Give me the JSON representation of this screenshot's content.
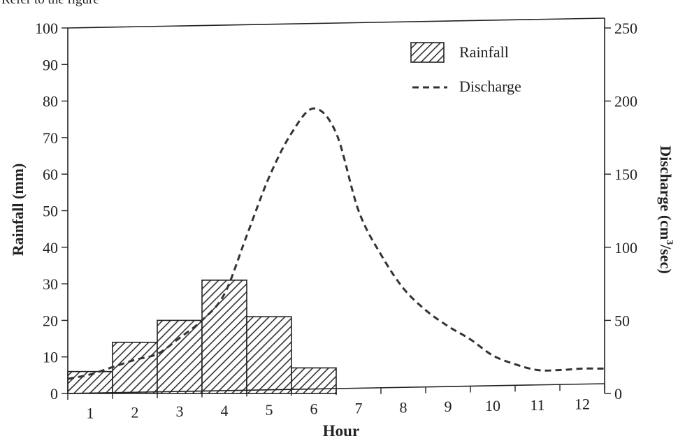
{
  "caption": "Refer to the figure",
  "chart_data": {
    "type": "bar",
    "title": "",
    "xlabel": "Hour",
    "ylabel": "Rainfall (mm)",
    "y2label_prefix": "Discharge (cm",
    "y2label_sup": "3",
    "y2label_suffix": "/sec)",
    "x_ticks": [
      1,
      2,
      3,
      4,
      5,
      6,
      7,
      8,
      9,
      10,
      11,
      12
    ],
    "y_ticks": [
      0,
      10,
      20,
      30,
      40,
      50,
      60,
      70,
      80,
      90,
      100
    ],
    "y2_ticks": [
      0,
      50,
      100,
      150,
      200,
      250
    ],
    "xlim": [
      0.5,
      12.5
    ],
    "ylim": [
      0,
      100
    ],
    "y2lim": [
      0,
      250
    ],
    "grid": false,
    "legend_position": "top-right",
    "legend": [
      "Rainfall",
      "Discharge"
    ],
    "series": [
      {
        "name": "Rainfall",
        "type": "bar",
        "axis": "left",
        "pattern": "diagonal-hatch",
        "x": [
          1,
          2,
          3,
          4,
          5,
          6
        ],
        "values": [
          6,
          14,
          20,
          31,
          21,
          7
        ]
      },
      {
        "name": "Discharge",
        "type": "line",
        "axis": "right",
        "style": "dashed",
        "x": [
          0.5,
          1,
          1.5,
          2,
          2.5,
          3,
          3.5,
          4,
          4.5,
          5,
          5.5,
          6,
          6.5,
          7,
          7.5,
          8,
          8.5,
          9,
          9.5,
          10,
          10.5,
          11,
          11.5,
          12,
          12.5
        ],
        "values": [
          10,
          13,
          18,
          23,
          27,
          38,
          50,
          68,
          108,
          148,
          178,
          195,
          178,
          125,
          95,
          72,
          57,
          46,
          37,
          26,
          20,
          16,
          16,
          17,
          17
        ]
      }
    ]
  },
  "colors": {
    "ink": "#222222",
    "bar_fill": "#ffffff",
    "hatch": "#333333"
  }
}
